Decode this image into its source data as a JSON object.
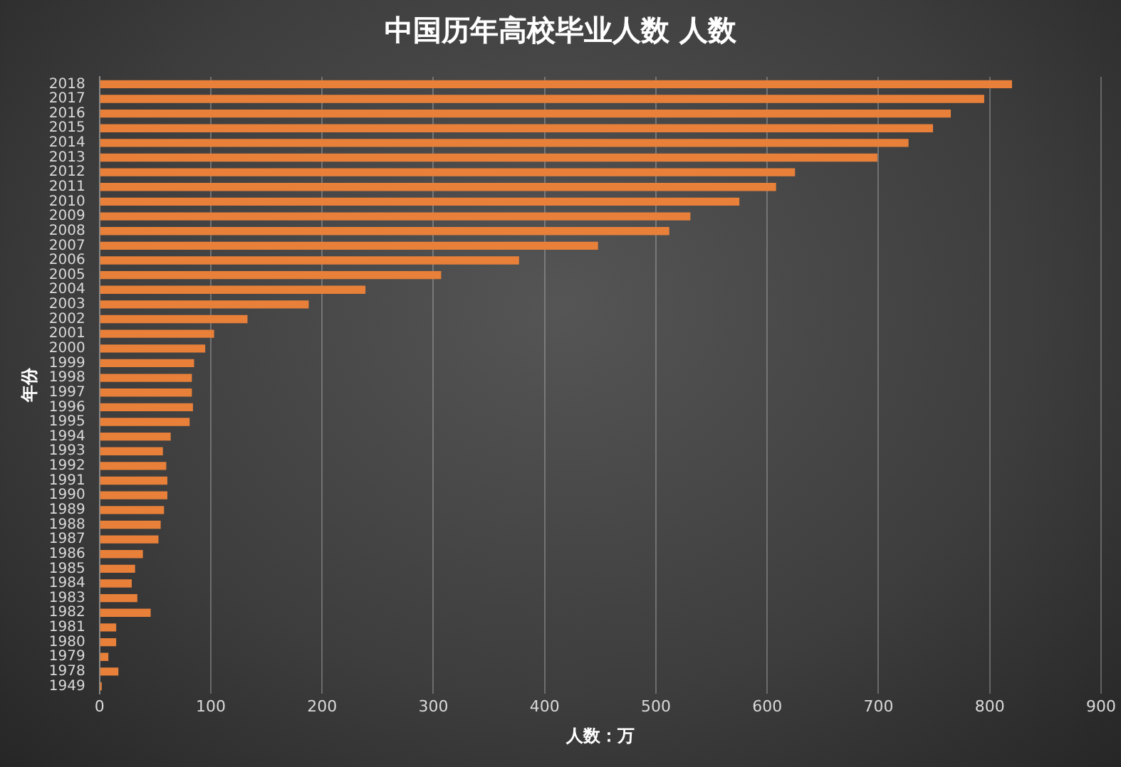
{
  "chart_data": {
    "type": "bar",
    "orientation": "horizontal",
    "title": "中国历年高校毕业人数 人数",
    "xlabel": "人数：万",
    "ylabel": "年份",
    "categories": [
      "2018",
      "2017",
      "2016",
      "2015",
      "2014",
      "2013",
      "2012",
      "2011",
      "2010",
      "2009",
      "2008",
      "2007",
      "2006",
      "2005",
      "2004",
      "2003",
      "2002",
      "2001",
      "2000",
      "1999",
      "1998",
      "1997",
      "1996",
      "1995",
      "1994",
      "1993",
      "1992",
      "1991",
      "1990",
      "1989",
      "1988",
      "1987",
      "1986",
      "1985",
      "1984",
      "1983",
      "1982",
      "1981",
      "1980",
      "1979",
      "1978",
      "1949"
    ],
    "values": [
      820,
      795,
      765,
      749,
      727,
      699,
      625,
      608,
      575,
      531,
      512,
      448,
      377,
      307,
      239,
      188,
      133,
      103,
      95,
      85,
      83,
      83,
      84,
      81,
      64,
      57,
      60,
      61,
      61,
      58,
      55,
      53,
      39,
      32,
      29,
      34,
      46,
      15,
      15,
      8,
      17,
      2
    ],
    "color": "#e8803a",
    "xlim": [
      0,
      900
    ],
    "xticks": [
      0,
      100,
      200,
      300,
      400,
      500,
      600,
      700,
      800,
      900
    ],
    "grid": "x"
  }
}
